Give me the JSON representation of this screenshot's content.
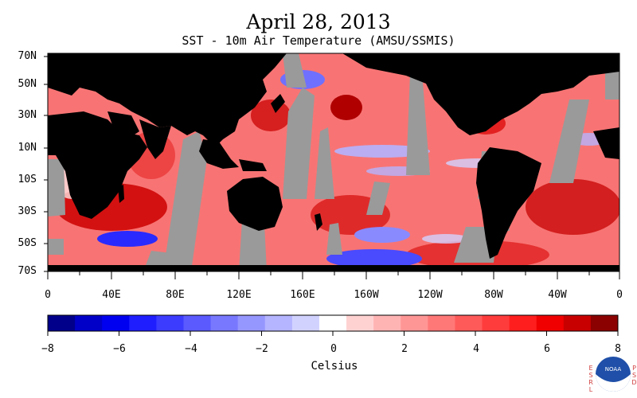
{
  "title": "April 28, 2013",
  "subtitle": "SST - 10m Air Temperature (AMSU/SSMIS)",
  "lat_labels": [
    "70N",
    "50N",
    "30N",
    "10N",
    "10S",
    "30S",
    "50S",
    "70S"
  ],
  "lon_labels": [
    "0",
    "40E",
    "80E",
    "120E",
    "160E",
    "160W",
    "120W",
    "80W",
    "40W",
    "0"
  ],
  "colorbar": {
    "title": "Celsius",
    "ticks": [
      "−8",
      "−6",
      "−4",
      "−2",
      "0",
      "2",
      "4",
      "6",
      "8"
    ],
    "range": [
      -8,
      8
    ],
    "colors": [
      "#00008b",
      "#0000c8",
      "#0000f0",
      "#1e1eff",
      "#3c3cff",
      "#5a5aff",
      "#7878ff",
      "#9696ff",
      "#b4b4ff",
      "#d2d2ff",
      "#ffffff",
      "#ffd2d2",
      "#ffb4b4",
      "#ff9696",
      "#ff7878",
      "#ff5a5a",
      "#ff3c3c",
      "#ff1e1e",
      "#f00000",
      "#c80000",
      "#8b0000"
    ]
  },
  "map_colors": {
    "land": "#000000",
    "no_data": "#9a9a9a",
    "ocean_warm": "#f05050",
    "ocean_cool": "#6a6aff"
  },
  "logos": {
    "left_text": "ESRL",
    "right_text": "PSD",
    "center_text": "NOAA"
  }
}
